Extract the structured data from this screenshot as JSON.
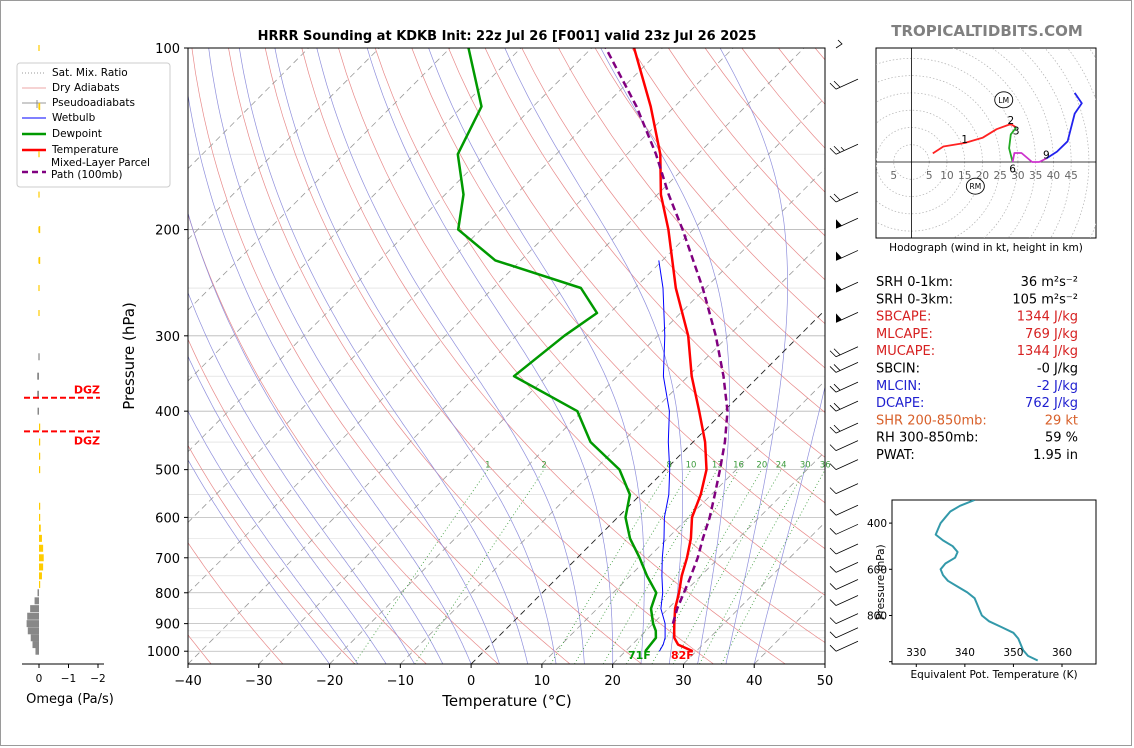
{
  "title": "HRRR Sounding at KDKB Init: 22z Jul 26 [F001] valid 23z Jul 26 2025",
  "site_label": "TROPICALTIDBITS.COM",
  "colors": {
    "temperature": "#ff0000",
    "dewpoint": "#009900",
    "wetbulb": "#0000ff",
    "parcel": "#800080",
    "dry_adiabat": "#e88a8a",
    "moist_adiabat": "#8f8fdc",
    "mixing_ratio": "#3a9a3a",
    "dgz": "#ff0000",
    "omega_up": "#ffcc00",
    "omega_down": "#888888",
    "theta_e": "#3399aa"
  },
  "skewt": {
    "xlabel": "Temperature (°C)",
    "ylabel": "Pressure (hPa)",
    "xlim": [
      -40,
      50
    ],
    "ylim": [
      1050,
      100
    ],
    "xticks": [
      -40,
      -30,
      -20,
      -10,
      0,
      10,
      20,
      30,
      40,
      50
    ],
    "xtick_labels": [
      "−40",
      "−30",
      "−20",
      "−10",
      "0",
      "10",
      "20",
      "30",
      "40",
      "50"
    ],
    "yticks": [
      1000,
      900,
      800,
      700,
      600,
      500,
      400,
      300,
      200,
      100
    ],
    "ytick_labels": [
      "1000",
      "900",
      "800",
      "700",
      "600",
      "500",
      "400",
      "300",
      "200",
      "100"
    ],
    "mixing_ratio_labels": [
      "1",
      "2",
      "8",
      "10",
      "13",
      "16",
      "20",
      "24",
      "30",
      "36"
    ],
    "surface_temp_label": "82F",
    "surface_dewpoint_label": "71F",
    "legend": [
      "Sat. Mix. Ratio",
      "Dry Adiabats",
      "Pseudoadiabats",
      "Wetbulb",
      "Dewpoint",
      "Temperature",
      "Mixed-Layer Parcel Path (100mb)"
    ]
  },
  "chart_data": [
    {
      "type": "line",
      "title": "HRRR Sounding at KDKB Init: 22z Jul 26 [F001] valid 23z Jul 26 2025",
      "xlabel": "Temperature (°C)",
      "ylabel": "Pressure (hPa)",
      "xlim": [
        -40,
        50
      ],
      "ylim": [
        1050,
        100
      ],
      "y_scale": "log",
      "skew": "temperature isotherms skewed 45°",
      "series": [
        {
          "name": "Temperature",
          "points": [
            [
              1000,
              29.5
            ],
            [
              975,
              26.5
            ],
            [
              950,
              25.0
            ],
            [
              925,
              24.0
            ],
            [
              900,
              23.0
            ],
            [
              850,
              21.0
            ],
            [
              800,
              19.3
            ],
            [
              750,
              17.3
            ],
            [
              700,
              15.5
            ],
            [
              650,
              13.3
            ],
            [
              600,
              10.5
            ],
            [
              550,
              8.5
            ],
            [
              500,
              5.8
            ],
            [
              450,
              1.7
            ],
            [
              400,
              -3.5
            ],
            [
              350,
              -9.5
            ],
            [
              300,
              -15.7
            ],
            [
              250,
              -24.2
            ],
            [
              200,
              -33.5
            ],
            [
              175,
              -39.5
            ],
            [
              150,
              -45.3
            ],
            [
              125,
              -53.4
            ],
            [
              100,
              -64.0
            ]
          ]
        },
        {
          "name": "Dewpoint",
          "points": [
            [
              1000,
              22.8
            ],
            [
              975,
              22.6
            ],
            [
              950,
              22.4
            ],
            [
              925,
              21.4
            ],
            [
              900,
              20.0
            ],
            [
              850,
              17.6
            ],
            [
              800,
              16.1
            ],
            [
              750,
              12.4
            ],
            [
              700,
              8.8
            ],
            [
              650,
              4.7
            ],
            [
              600,
              1.1
            ],
            [
              550,
              -1.5
            ],
            [
              500,
              -6.5
            ],
            [
              450,
              -14.5
            ],
            [
              400,
              -20.7
            ],
            [
              350,
              -34.6
            ],
            [
              300,
              -33.2
            ],
            [
              275,
              -31.8
            ],
            [
              250,
              -37.6
            ],
            [
              225,
              -53.6
            ],
            [
              200,
              -63.2
            ],
            [
              175,
              -67.4
            ],
            [
              150,
              -73.9
            ],
            [
              125,
              -77.3
            ],
            [
              100,
              -87.4
            ]
          ]
        },
        {
          "name": "Wetbulb",
          "points": [
            [
              1000,
              24.8
            ],
            [
              975,
              24.4
            ],
            [
              950,
              23.7
            ],
            [
              900,
              21.7
            ],
            [
              850,
              19.0
            ],
            [
              800,
              17.0
            ],
            [
              750,
              14.5
            ],
            [
              700,
              12.0
            ],
            [
              650,
              9.5
            ],
            [
              600,
              6.6
            ],
            [
              550,
              4.0
            ],
            [
              500,
              0.6
            ],
            [
              450,
              -3.5
            ],
            [
              400,
              -7.7
            ],
            [
              350,
              -13.5
            ],
            [
              300,
              -19.0
            ],
            [
              250,
              -26.0
            ],
            [
              225,
              -30.5
            ]
          ]
        },
        {
          "name": "Mixed-Layer Parcel Path (100mb)",
          "points": [
            [
              900,
              22.8
            ],
            [
              850,
              21.3
            ],
            [
              800,
              20.0
            ],
            [
              750,
              18.6
            ],
            [
              700,
              17.0
            ],
            [
              650,
              15.0
            ],
            [
              600,
              13.0
            ],
            [
              550,
              10.5
            ],
            [
              500,
              7.7
            ],
            [
              450,
              4.5
            ],
            [
              400,
              0.5
            ],
            [
              350,
              -5.0
            ],
            [
              300,
              -11.8
            ],
            [
              250,
              -20.4
            ],
            [
              200,
              -31.5
            ],
            [
              175,
              -38.4
            ],
            [
              150,
              -45.9
            ],
            [
              125,
              -55.4
            ],
            [
              100,
              -68.0
            ]
          ]
        }
      ]
    },
    {
      "type": "bar",
      "title": "",
      "xlabel": "Omega (Pa/s)",
      "ylabel": "",
      "xlim": [
        0.3,
        -2.5
      ],
      "xticks": [
        0,
        -1,
        -2
      ],
      "xtick_labels": [
        "0",
        "−1",
        "−2"
      ],
      "dgz_label": "DGZ",
      "dgz_top": 380,
      "dgz_bottom": 432,
      "levels": [
        1000,
        975,
        950,
        925,
        900,
        875,
        850,
        825,
        800,
        775,
        750,
        725,
        700,
        675,
        650,
        625,
        600,
        575,
        550,
        525,
        500,
        475,
        450,
        425,
        400,
        375,
        350,
        325,
        300,
        275,
        250,
        225,
        200,
        175,
        150,
        125,
        100
      ],
      "values": [
        0.12,
        0.22,
        0.28,
        0.38,
        0.42,
        0.4,
        0.3,
        0.15,
        0.05,
        -0.02,
        -0.1,
        -0.14,
        -0.16,
        -0.14,
        -0.1,
        -0.06,
        -0.03,
        -0.01,
        0.0,
        0.0,
        -0.01,
        -0.02,
        -0.04,
        -0.03,
        0.05,
        0.06,
        0.06,
        0.02,
        0.0,
        0.0,
        0.0,
        -0.01,
        -0.04,
        0.0,
        0.0,
        -0.01,
        0.0
      ]
    },
    {
      "type": "line",
      "title": "Hodograph (wind in kt, height in km)",
      "xlim": [
        -10,
        52
      ],
      "ylim": [
        -22,
        33
      ],
      "ring_labels": [
        "5",
        "5",
        "10",
        "15",
        "20",
        "25",
        "30",
        "35",
        "40",
        "45"
      ],
      "height_labels": [
        "1",
        "2",
        "3",
        "6",
        "9"
      ],
      "markers": [
        "LM",
        "RM"
      ],
      "segments": [
        {
          "name": "0-3 km",
          "color": "#ff2222",
          "points": [
            [
              6,
              2.5
            ],
            [
              9,
              4.5
            ],
            [
              15,
              5.5
            ],
            [
              20,
              7
            ],
            [
              24,
              9.5
            ],
            [
              28,
              11
            ],
            [
              29.5,
              10
            ]
          ]
        },
        {
          "name": "3-6 km",
          "color": "#22aa22",
          "points": [
            [
              29.5,
              10
            ],
            [
              28,
              8
            ],
            [
              27.5,
              4
            ],
            [
              28.5,
              0
            ]
          ]
        },
        {
          "name": "6-9 km",
          "color": "#cc33cc",
          "points": [
            [
              28.5,
              0
            ],
            [
              29,
              2.6
            ],
            [
              31,
              2.6
            ],
            [
              34,
              0
            ],
            [
              36,
              0
            ],
            [
              38,
              1
            ]
          ]
        },
        {
          "name": "9+ km",
          "color": "#2222ee",
          "points": [
            [
              38,
              1
            ],
            [
              41,
              3
            ],
            [
              44,
              6
            ],
            [
              46,
              14
            ],
            [
              48,
              17
            ],
            [
              46,
              20
            ]
          ]
        }
      ],
      "lm_point": [
        26,
        18
      ],
      "rm_point": [
        18,
        -7
      ]
    },
    {
      "type": "line",
      "title": "",
      "xlabel": "Equivalent Pot. Temperature (K)",
      "ylabel": "Pressure (hPa)",
      "xlim": [
        325,
        367
      ],
      "ylim": [
        1010,
        300
      ],
      "xticks": [
        330,
        340,
        350,
        360
      ],
      "xtick_labels": [
        "330",
        "340",
        "350",
        "360"
      ],
      "yticks": [
        400,
        600,
        800,
        1000
      ],
      "ytick_labels": [
        "400",
        "600",
        "800",
        ""
      ],
      "series": [
        {
          "name": "Equivalent Potential Temperature",
          "points": [
            [
              300,
              342
            ],
            [
              325,
              339
            ],
            [
              350,
              337
            ],
            [
              375,
              336
            ],
            [
              400,
              335
            ],
            [
              425,
              334.5
            ],
            [
              450,
              334
            ],
            [
              475,
              335.5
            ],
            [
              500,
              337.5
            ],
            [
              525,
              338.5
            ],
            [
              550,
              338
            ],
            [
              575,
              336
            ],
            [
              600,
              335
            ],
            [
              625,
              335.5
            ],
            [
              650,
              336.5
            ],
            [
              675,
              338.5
            ],
            [
              700,
              340.5
            ],
            [
              725,
              342
            ],
            [
              750,
              342.5
            ],
            [
              775,
              343
            ],
            [
              800,
              343.5
            ],
            [
              825,
              345
            ],
            [
              850,
              347.5
            ],
            [
              875,
              350
            ],
            [
              900,
              351
            ],
            [
              925,
              351.5
            ],
            [
              950,
              352
            ],
            [
              975,
              353
            ],
            [
              995,
              355
            ]
          ]
        }
      ]
    }
  ],
  "indices": [
    {
      "label": "SRH 0-1km:",
      "value": "36 m²s⁻²",
      "color": "#000000"
    },
    {
      "label": "SRH 0-3km:",
      "value": "105 m²s⁻²",
      "color": "#000000"
    },
    {
      "label": "SBCAPE:",
      "value": "1344 J/kg",
      "color": "#d62020"
    },
    {
      "label": "MLCAPE:",
      "value": "769 J/kg",
      "color": "#d62020"
    },
    {
      "label": "MUCAPE:",
      "value": "1344 J/kg",
      "color": "#d62020"
    },
    {
      "label": "SBCIN:",
      "value": "-0 J/kg",
      "color": "#000000"
    },
    {
      "label": "MLCIN:",
      "value": "-2 J/kg",
      "color": "#2020d0"
    },
    {
      "label": "DCAPE:",
      "value": "762 J/kg",
      "color": "#2020d0"
    },
    {
      "label": "SHR 200-850mb:",
      "value": "29 kt",
      "color": "#d8602a"
    },
    {
      "label": "RH 300-850mb:",
      "value": "59 %",
      "color": "#000000"
    },
    {
      "label": "PWAT:",
      "value": "1.95 in",
      "color": "#000000"
    }
  ],
  "wind_barbs": [
    {
      "p": 100,
      "kind": "calm"
    },
    {
      "p": 117,
      "kind": "long2"
    },
    {
      "p": 150,
      "kind": "long1short"
    },
    {
      "p": 180,
      "kind": "long2"
    },
    {
      "p": 199,
      "kind": "flag"
    },
    {
      "p": 225,
      "kind": "flag"
    },
    {
      "p": 254,
      "kind": "flag"
    },
    {
      "p": 285,
      "kind": "flag"
    },
    {
      "p": 325,
      "kind": "long2"
    },
    {
      "p": 345,
      "kind": "long2"
    },
    {
      "p": 372,
      "kind": "long2"
    },
    {
      "p": 400,
      "kind": "long2"
    },
    {
      "p": 435,
      "kind": "long2"
    },
    {
      "p": 465,
      "kind": "long1"
    },
    {
      "p": 500,
      "kind": "long1"
    },
    {
      "p": 548,
      "kind": "long1"
    },
    {
      "p": 595,
      "kind": "long1"
    },
    {
      "p": 640,
      "kind": "long1"
    },
    {
      "p": 690,
      "kind": "long1"
    },
    {
      "p": 740,
      "kind": "long1"
    },
    {
      "p": 790,
      "kind": "long1"
    },
    {
      "p": 840,
      "kind": "long1"
    },
    {
      "p": 900,
      "kind": "long1"
    },
    {
      "p": 950,
      "kind": "long1"
    },
    {
      "p": 1000,
      "kind": "long1"
    }
  ]
}
